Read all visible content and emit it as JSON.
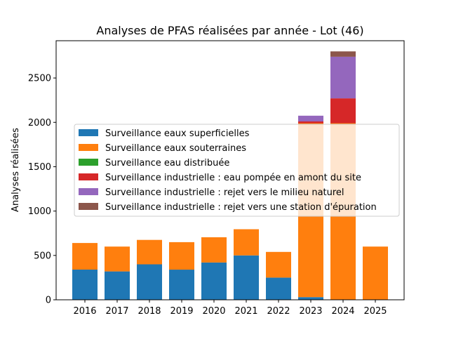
{
  "chart_data": {
    "type": "bar",
    "stacked": true,
    "title": "Analyses de PFAS réalisées par année - Lot (46)",
    "xlabel": "",
    "ylabel": "Analyses réalisées",
    "ylim": [
      0,
      2920
    ],
    "yticks": [
      0,
      500,
      1000,
      1500,
      2000,
      2500
    ],
    "grid": false,
    "legend_position": "center-left",
    "categories": [
      "2016",
      "2017",
      "2018",
      "2019",
      "2020",
      "2021",
      "2022",
      "2023",
      "2024",
      "2025"
    ],
    "series": [
      {
        "name": "Surveillance eaux superficielles",
        "color": "#1f77b4",
        "values": [
          340,
          320,
          400,
          340,
          420,
          500,
          250,
          30,
          0,
          0
        ]
      },
      {
        "name": "Surveillance eaux souterraines",
        "color": "#ff7f0e",
        "values": [
          300,
          280,
          275,
          310,
          285,
          295,
          290,
          1960,
          1990,
          600
        ]
      },
      {
        "name": "Surveillance eau distribuée",
        "color": "#2ca02c",
        "values": [
          0,
          0,
          0,
          0,
          0,
          0,
          0,
          0,
          0,
          0
        ]
      },
      {
        "name": "Surveillance industrielle : eau pompée en amont du site",
        "color": "#d62728",
        "values": [
          0,
          0,
          0,
          0,
          0,
          0,
          0,
          20,
          280,
          0
        ]
      },
      {
        "name": "Surveillance industrielle : rejet vers le milieu naturel",
        "color": "#9467bd",
        "values": [
          0,
          0,
          0,
          0,
          0,
          0,
          0,
          65,
          470,
          0
        ]
      },
      {
        "name": "Surveillance industrielle : rejet vers une station d'épuration",
        "color": "#8c564b",
        "values": [
          0,
          0,
          0,
          0,
          0,
          0,
          0,
          0,
          60,
          0
        ]
      }
    ]
  }
}
